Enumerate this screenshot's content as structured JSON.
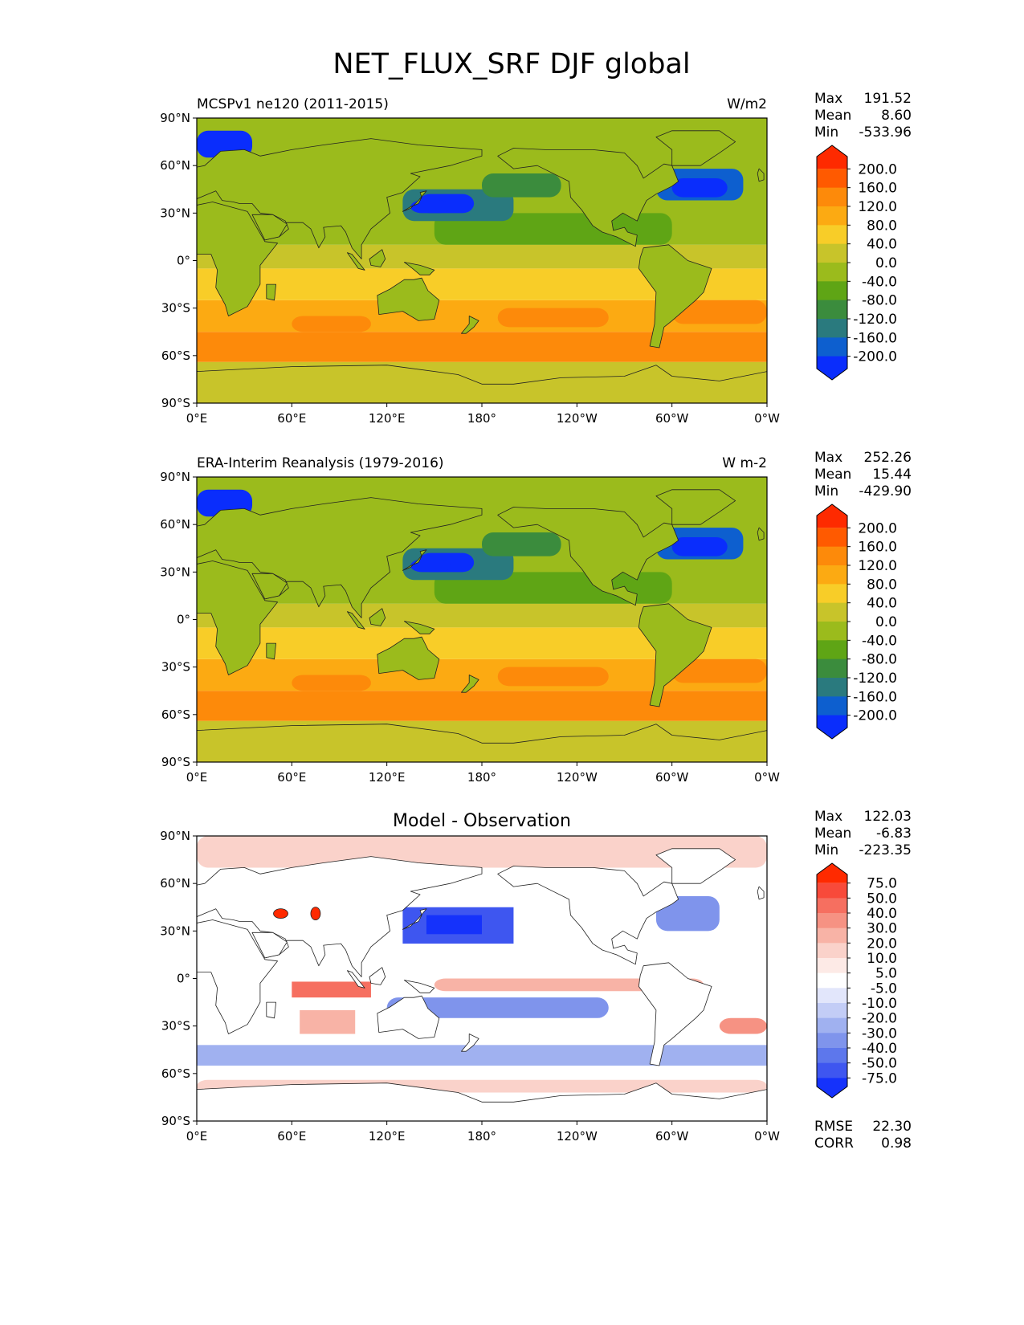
{
  "figure": {
    "title": "NET_FLUX_SRF DJF global"
  },
  "panels": [
    {
      "left_title": "MCSPv1 ne120 (2011-2015)",
      "center_title": "",
      "units": "W/m2",
      "stats": {
        "max_label": "Max",
        "max": "191.52",
        "mean_label": "Mean",
        "mean": "8.60",
        "min_label": "Min",
        "min": "-533.96"
      },
      "cmap": "abs"
    },
    {
      "left_title": "ERA-Interim Reanalysis (1979-2016)",
      "center_title": "",
      "units": "W m-2",
      "stats": {
        "max_label": "Max",
        "max": "252.26",
        "mean_label": "Mean",
        "mean": "15.44",
        "min_label": "Min",
        "min": "-429.90"
      },
      "cmap": "abs"
    },
    {
      "left_title": "",
      "center_title": "Model - Observation",
      "units": "",
      "stats": {
        "max_label": "Max",
        "max": "122.03",
        "mean_label": "Mean",
        "mean": "-6.83",
        "min_label": "Min",
        "min": "-223.35"
      },
      "cmap": "diff",
      "extra": {
        "rmse_label": "RMSE",
        "rmse": "22.30",
        "corr_label": "CORR",
        "corr": "0.98"
      }
    }
  ],
  "axes": {
    "lat_ticks": [
      "90°N",
      "60°N",
      "30°N",
      "0°",
      "30°S",
      "60°S",
      "90°S"
    ],
    "lon_ticks": [
      "0°E",
      "60°E",
      "120°E",
      "180°",
      "120°W",
      "60°W",
      "0°W"
    ]
  },
  "colorbars": {
    "abs": {
      "labels": [
        "200.0",
        "160.0",
        "120.0",
        "80.0",
        "40.0",
        "0.0",
        "-40.0",
        "-80.0",
        "-120.0",
        "-160.0",
        "-200.0"
      ],
      "colors": [
        "#fe2a00",
        "#ff5a00",
        "#fd8a0a",
        "#fcaa12",
        "#f8cd28",
        "#c8c42a",
        "#9bbb1c",
        "#5fa515",
        "#3b8c3d",
        "#2a7a7e",
        "#0d5fcf",
        "#0a2dfc"
      ]
    },
    "diff": {
      "labels": [
        "75.0",
        "50.0",
        "40.0",
        "30.0",
        "20.0",
        "10.0",
        "5.0",
        "-5.0",
        "-10.0",
        "-20.0",
        "-30.0",
        "-40.0",
        "-50.0",
        "-75.0"
      ],
      "colors": [
        "#ff2a00",
        "#f84a3a",
        "#f66f60",
        "#f69283",
        "#f8b3a6",
        "#fad2ca",
        "#fdeae6",
        "#ffffff",
        "#e2e6fb",
        "#c3cdf6",
        "#a0b1f0",
        "#7f94ec",
        "#5d77ec",
        "#3e56f0",
        "#1532fb"
      ]
    }
  },
  "chart_data": {
    "type": "heatmap",
    "title": "NET_FLUX_SRF DJF global",
    "maps": [
      {
        "name": "MCSPv1 ne120 (2011-2015)",
        "units": "W/m2",
        "max": 191.52,
        "mean": 8.6,
        "min": -533.96,
        "xlim": [
          0,
          360
        ],
        "ylim": [
          -90,
          90
        ]
      },
      {
        "name": "ERA-Interim Reanalysis (1979-2016)",
        "units": "W m-2",
        "max": 252.26,
        "mean": 15.44,
        "min": -429.9,
        "xlim": [
          0,
          360
        ],
        "ylim": [
          -90,
          90
        ]
      },
      {
        "name": "Model - Observation",
        "max": 122.03,
        "mean": -6.83,
        "min": -223.35,
        "rmse": 22.3,
        "corr": 0.98,
        "xlim": [
          0,
          360
        ],
        "ylim": [
          -90,
          90
        ]
      }
    ],
    "abs_levels": [
      -200,
      -160,
      -120,
      -80,
      -40,
      0,
      40,
      80,
      120,
      160,
      200
    ],
    "diff_levels": [
      -75,
      -50,
      -40,
      -30,
      -20,
      -10,
      -5,
      5,
      10,
      20,
      30,
      40,
      50,
      75
    ]
  }
}
